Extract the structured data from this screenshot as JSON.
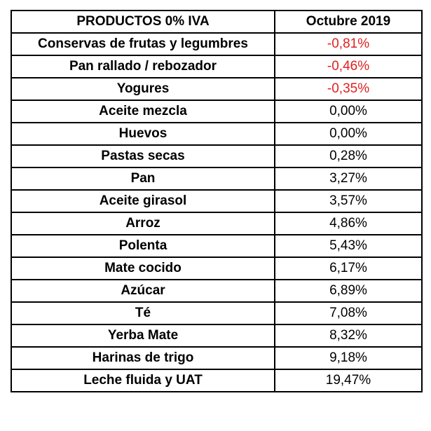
{
  "table": {
    "headers": {
      "product": "PRODUCTOS 0% IVA",
      "period": "Octubre 2019"
    },
    "rows": [
      {
        "product": "Conservas de frutas y legumbres",
        "value": "-0,81%"
      },
      {
        "product": "Pan rallado / rebozador",
        "value": "-0,46%"
      },
      {
        "product": "Yogures",
        "value": "-0,35%"
      },
      {
        "product": "Aceite mezcla",
        "value": "0,00%"
      },
      {
        "product": "Huevos",
        "value": "0,00%"
      },
      {
        "product": "Pastas secas",
        "value": "0,28%"
      },
      {
        "product": "Pan",
        "value": "3,27%"
      },
      {
        "product": "Aceite girasol",
        "value": "3,57%"
      },
      {
        "product": "Arroz",
        "value": "4,86%"
      },
      {
        "product": "Polenta",
        "value": "5,43%"
      },
      {
        "product": "Mate cocido",
        "value": "6,17%"
      },
      {
        "product": "Azúcar",
        "value": "6,89%"
      },
      {
        "product": "Té",
        "value": "7,08%"
      },
      {
        "product": "Yerba Mate",
        "value": "8,32%"
      },
      {
        "product": "Harinas de trigo",
        "value": "9,18%"
      },
      {
        "product": "Leche fluida y UAT",
        "value": "19,47%"
      }
    ]
  },
  "colors": {
    "negative": "#e02020",
    "text": "#000000",
    "border": "#000000"
  }
}
